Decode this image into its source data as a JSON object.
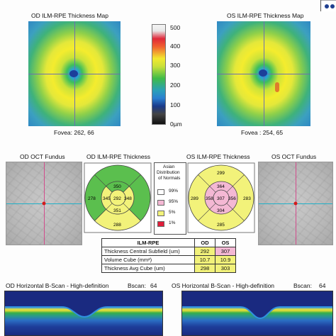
{
  "header": {
    "od_map_title": "OD ILM-RPE Thickness Map",
    "os_map_title": "OS ILM-RPE Thickness Map",
    "od_fovea": "Fovea: 262, 66",
    "os_fovea": "Fovea : 254, 65"
  },
  "colorbar": {
    "ticks": [
      "500",
      "400",
      "300",
      "200",
      "100",
      "0µm"
    ],
    "colors": [
      "#f0f0f0",
      "#e8283a",
      "#f2e92f",
      "#3fbb48",
      "#2a7fd0",
      "#111111"
    ]
  },
  "middle": {
    "od_fundus_title": "OD OCT Fundus",
    "od_thickness_title": "OD ILM-RPE Thickness",
    "os_thickness_title": "OS ILM-RPE Thickness",
    "os_fundus_title": "OS OCT Fundus"
  },
  "od_etdrs": {
    "superior": "350",
    "temporal": "345",
    "center": "292",
    "nasal": "348",
    "inferior": "351",
    "outer_left": "278",
    "outer_bottom": "288",
    "outer_color": "#5bbf4e",
    "inner_color": "#f2f27a"
  },
  "os_etdrs": {
    "outer_top": "299",
    "superior": "364",
    "temporal": "358",
    "center": "307",
    "nasal": "356",
    "inferior": "304",
    "outer_left": "289",
    "outer_right": "283",
    "outer_bottom": "285",
    "outer_color": "#f2f27a",
    "inner_color": "#f4b8d4"
  },
  "legend": {
    "title_line1": "Asian",
    "title_line2": "Distribution",
    "title_line3": "of Normals",
    "items": [
      {
        "label": "99%",
        "color": "#ffffff"
      },
      {
        "label": "95%",
        "color": "#f4b8d4"
      },
      {
        "label": "5%",
        "color": "#f2f27a"
      },
      {
        "label": "1%",
        "color": "#e01e3a"
      }
    ]
  },
  "table": {
    "headers": [
      "ILM-RPE",
      "OD",
      "OS"
    ],
    "rows": [
      {
        "label": "Thickness Central Subfield (um)",
        "od": "292",
        "os": "307"
      },
      {
        "label": "Volume Cube (mm²)",
        "od": "10.7",
        "os": "10.9"
      },
      {
        "label": "Thickness Avg Cube (um)",
        "od": "298",
        "os": "303"
      }
    ]
  },
  "bottom": {
    "od_bscan_title": "OD Horizontal B-Scan - High-definition",
    "od_bscan_label": "Bscan:",
    "od_bscan_value": "64",
    "os_bscan_title": "OS Horizontal B-Scan - High-definition",
    "os_bscan_label": "Bscan:",
    "os_bscan_value": "64"
  }
}
